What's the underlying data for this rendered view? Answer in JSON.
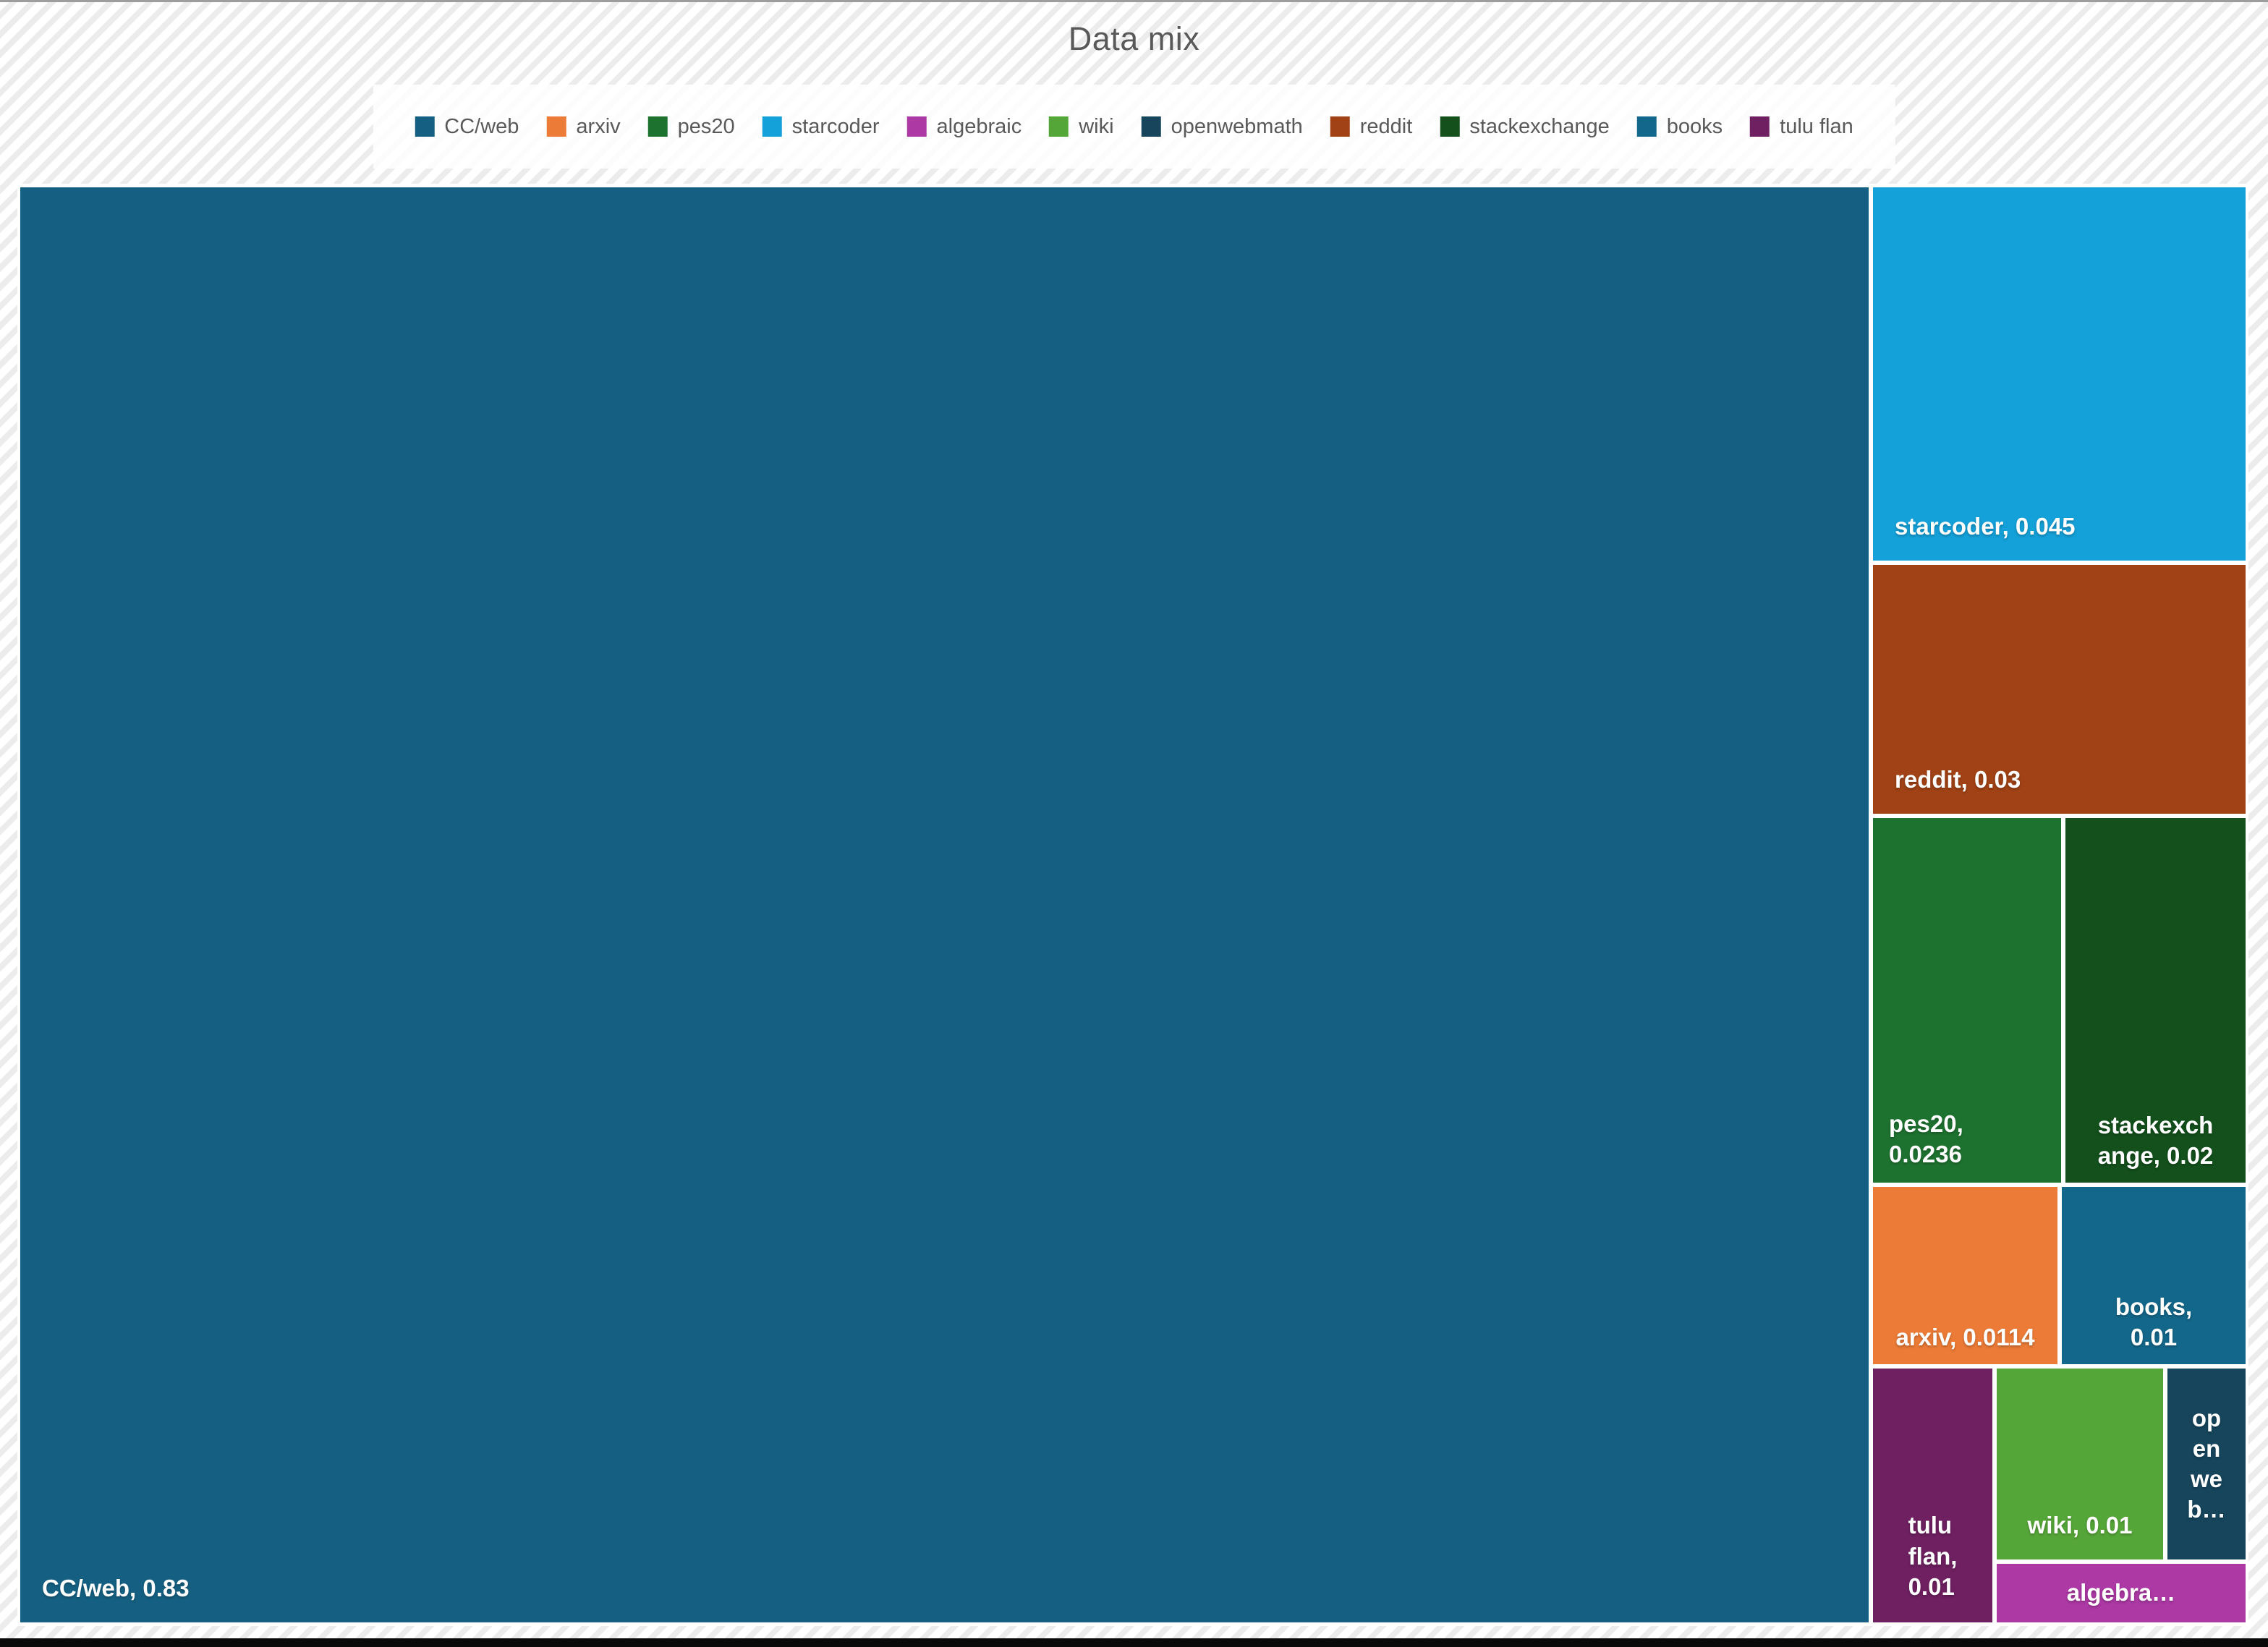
{
  "title": "Data mix",
  "legend": {
    "items": [
      {
        "label": "CC/web",
        "color": "#156082"
      },
      {
        "label": "arxiv",
        "color": "#EB7B36"
      },
      {
        "label": "pes20",
        "color": "#1E7230"
      },
      {
        "label": "starcoder",
        "color": "#14A0D8"
      },
      {
        "label": "algebraic",
        "color": "#AC39A4"
      },
      {
        "label": "wiki",
        "color": "#55A638"
      },
      {
        "label": "openwebmath",
        "color": "#16455C"
      },
      {
        "label": "reddit",
        "color": "#A04215"
      },
      {
        "label": "stackexchange",
        "color": "#13501C"
      },
      {
        "label": "books",
        "color": "#13678A"
      },
      {
        "label": "tulu flan",
        "color": "#6E2060"
      }
    ]
  },
  "treemap": {
    "tiles": [
      {
        "name": "CC/web",
        "label": "CC/web, 0.83",
        "color": "#156082"
      },
      {
        "name": "starcoder",
        "label": "starcoder, 0.045",
        "color": "#14A0D8"
      },
      {
        "name": "reddit",
        "label": "reddit, 0.03",
        "color": "#A04215"
      },
      {
        "name": "pes20",
        "label": "pes20,\n0.0236",
        "color": "#1E7230"
      },
      {
        "name": "stackexchange",
        "label": "stackexch\nange, 0.02",
        "color": "#13501C"
      },
      {
        "name": "arxiv",
        "label": "arxiv, 0.0114",
        "color": "#EB7B36"
      },
      {
        "name": "books",
        "label": "books,\n0.01",
        "color": "#13678A"
      },
      {
        "name": "tulu flan",
        "label": "tulu\nflan,\n0.01",
        "color": "#6E2060"
      },
      {
        "name": "wiki",
        "label": "wiki, 0.01",
        "color": "#55A638"
      },
      {
        "name": "openwebmath",
        "label": "op\nen\nwe\nb…",
        "color": "#16455C"
      },
      {
        "name": "algebraic",
        "label": "algebra…",
        "color": "#AC39A4"
      }
    ]
  },
  "chart_data": {
    "type": "treemap",
    "title": "Data mix",
    "legend_position": "top",
    "items": [
      {
        "name": "CC/web",
        "value": 0.83,
        "label_visible": "CC/web, 0.83"
      },
      {
        "name": "starcoder",
        "value": 0.045,
        "label_visible": "starcoder, 0.045"
      },
      {
        "name": "reddit",
        "value": 0.03,
        "label_visible": "reddit, 0.03"
      },
      {
        "name": "pes20",
        "value": 0.0236,
        "label_visible": "pes20, 0.0236"
      },
      {
        "name": "stackexchange",
        "value": 0.02,
        "label_visible": "stackexchange, 0.02"
      },
      {
        "name": "arxiv",
        "value": 0.0114,
        "label_visible": "arxiv, 0.0114"
      },
      {
        "name": "books",
        "value": 0.01,
        "label_visible": "books, 0.01"
      },
      {
        "name": "wiki",
        "value": 0.01,
        "label_visible": "wiki, 0.01"
      },
      {
        "name": "tulu flan",
        "value": 0.01,
        "label_visible": "tulu flan, 0.01"
      },
      {
        "name": "openwebmath",
        "value": 0.005,
        "estimated": true,
        "label_visible": "op en we b…"
      },
      {
        "name": "algebraic",
        "value": 0.005,
        "estimated": true,
        "label_visible": "algebra…"
      }
    ]
  }
}
